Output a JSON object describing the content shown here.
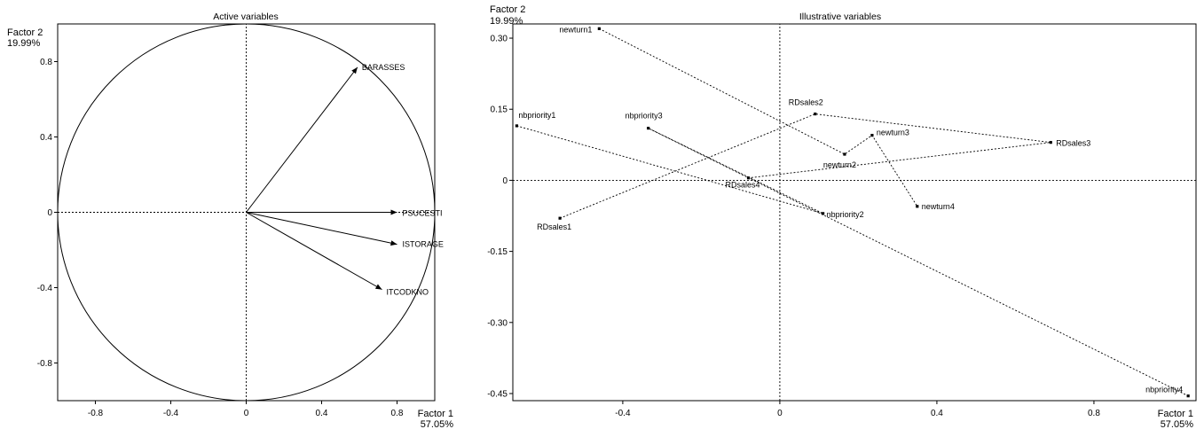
{
  "colors": {
    "ink": "#000000",
    "background": "#ffffff"
  },
  "chart_data": [
    {
      "type": "scatter",
      "title": "Active variables",
      "xlabel": {
        "line1": "Factor 1",
        "line2": "57.05%"
      },
      "ylabel": {
        "line1": "Factor 2",
        "line2": "19.99%"
      },
      "xlim": [
        -1,
        1
      ],
      "ylim": [
        -1,
        1
      ],
      "xticks": [
        {
          "v": -0.8,
          "label": "-0.8"
        },
        {
          "v": -0.4,
          "label": "-0.4"
        },
        {
          "v": 0,
          "label": "0"
        },
        {
          "v": 0.4,
          "label": "0.4"
        },
        {
          "v": 0.8,
          "label": "0.8"
        }
      ],
      "yticks": [
        {
          "v": 0.8,
          "label": "0.8"
        },
        {
          "v": 0.4,
          "label": "0.4"
        },
        {
          "v": 0,
          "label": "0"
        },
        {
          "v": -0.4,
          "label": "-0.4"
        },
        {
          "v": -0.8,
          "label": "-0.8"
        }
      ],
      "correlation_circle": true,
      "zero_lines": true,
      "points": [
        {
          "name": "BARASSES",
          "x": 0.59,
          "y": 0.77
        },
        {
          "name": "PSUCESTI",
          "x": 0.8,
          "y": 0.0
        },
        {
          "name": "ISTORAGE",
          "x": 0.8,
          "y": -0.17
        },
        {
          "name": "ITCODKNO",
          "x": 0.72,
          "y": -0.41
        }
      ]
    },
    {
      "type": "scatter",
      "title": "Illustrative variables",
      "xlabel": {
        "line1": "Factor 1",
        "line2": "57.05%"
      },
      "ylabel": {
        "line1": "Factor 2",
        "line2": "19.99%"
      },
      "xlim": [
        -0.68,
        1.06
      ],
      "ylim": [
        -0.465,
        0.33
      ],
      "xticks": [
        {
          "v": -0.4,
          "label": "-0.4"
        },
        {
          "v": 0,
          "label": "0"
        },
        {
          "v": 0.4,
          "label": "0.4"
        },
        {
          "v": 0.8,
          "label": "0.8"
        }
      ],
      "yticks": [
        {
          "v": 0.3,
          "label": "0.30"
        },
        {
          "v": 0.15,
          "label": "0.15"
        },
        {
          "v": 0,
          "label": "0"
        },
        {
          "v": -0.15,
          "label": "-0.15"
        },
        {
          "v": -0.3,
          "label": "-0.30"
        },
        {
          "v": -0.45,
          "label": "-0.45"
        }
      ],
      "zero_lines": true,
      "points": [
        {
          "name": "newturn1",
          "x": -0.46,
          "y": 0.32
        },
        {
          "name": "newturn2",
          "x": 0.165,
          "y": 0.055
        },
        {
          "name": "newturn3",
          "x": 0.235,
          "y": 0.095
        },
        {
          "name": "newturn4",
          "x": 0.35,
          "y": -0.055
        },
        {
          "name": "RDsales1",
          "x": -0.56,
          "y": -0.08
        },
        {
          "name": "RDsales2",
          "x": 0.09,
          "y": 0.14
        },
        {
          "name": "RDsales3",
          "x": 0.69,
          "y": 0.08
        },
        {
          "name": "RDsales4",
          "x": -0.08,
          "y": 0.005
        },
        {
          "name": "nbpriority1",
          "x": -0.67,
          "y": 0.115
        },
        {
          "name": "nbpriority2",
          "x": 0.11,
          "y": -0.07
        },
        {
          "name": "nbpriority3",
          "x": -0.335,
          "y": 0.11
        },
        {
          "name": "nbpriority4",
          "x": 1.04,
          "y": -0.455
        }
      ],
      "trajectories": [
        {
          "name": "newturn",
          "points": [
            "newturn1",
            "newturn2",
            "newturn3",
            "newturn4"
          ]
        },
        {
          "name": "RDsales",
          "points": [
            "RDsales1",
            "RDsales2",
            "RDsales3",
            "RDsales4"
          ]
        },
        {
          "name": "nbpriority",
          "points": [
            "nbpriority1",
            "nbpriority2",
            "nbpriority3",
            "nbpriority4"
          ]
        }
      ]
    }
  ]
}
